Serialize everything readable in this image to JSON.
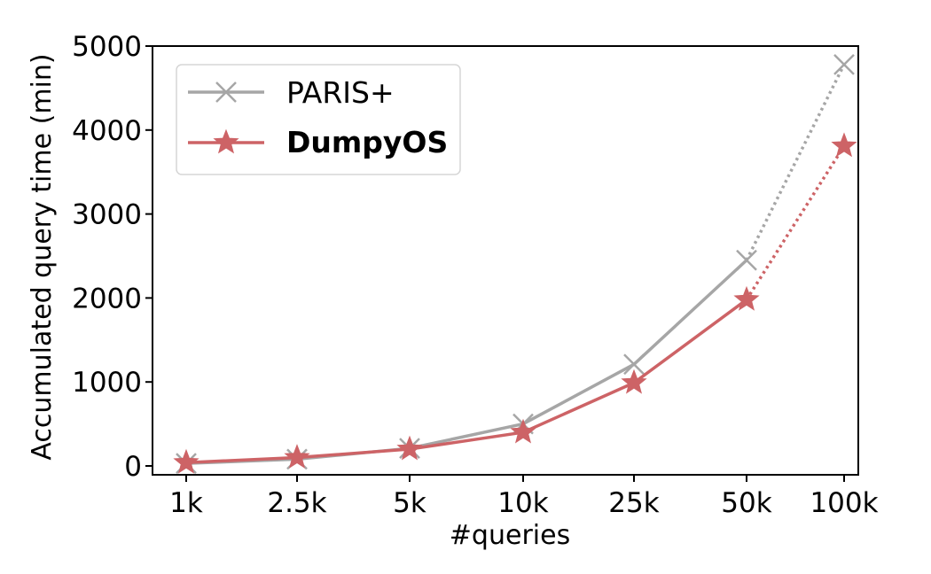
{
  "chart_data": {
    "type": "line",
    "title": "",
    "xlabel": "#queries",
    "ylabel": "Accumulated query time (min)",
    "categories": [
      "1k",
      "2.5k",
      "5k",
      "10k",
      "25k",
      "50k",
      "100k"
    ],
    "ylim": [
      0,
      5000
    ],
    "yticks": [
      0,
      1000,
      2000,
      3000,
      4000,
      5000
    ],
    "grid": false,
    "legend_position": "top-left",
    "series": [
      {
        "name": "PARIS+",
        "color": "#a6a6a6",
        "marker": "x",
        "values": [
          30,
          80,
          210,
          500,
          1210,
          2450,
          4780
        ],
        "dotted_last_segment": true
      },
      {
        "name": "DumpyOS",
        "color": "#cd6366",
        "marker": "star",
        "values": [
          40,
          100,
          200,
          400,
          990,
          1980,
          3810
        ],
        "dotted_last_segment": true
      }
    ]
  }
}
